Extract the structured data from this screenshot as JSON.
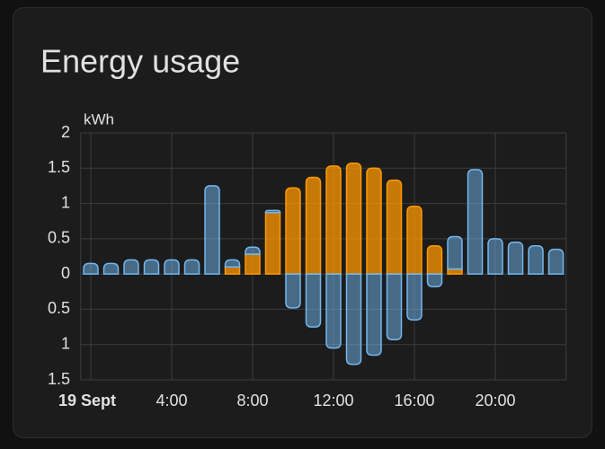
{
  "chart_data": {
    "type": "stacked_bar",
    "title": "Energy usage",
    "y_label": "kWh",
    "categories": [
      "19 Sept",
      null,
      null,
      null,
      "4:00",
      null,
      null,
      null,
      "8:00",
      null,
      null,
      null,
      "12:00",
      null,
      null,
      null,
      "16:00",
      null,
      null,
      null,
      "20:00",
      null,
      null,
      null
    ],
    "series": [
      {
        "color": "#ff9800",
        "values": [
          null,
          null,
          null,
          null,
          null,
          null,
          null,
          0.1,
          0.28,
          0.87,
          1.22,
          1.37,
          1.53,
          1.57,
          1.5,
          1.33,
          0.96,
          0.4,
          0.07,
          null,
          null,
          null,
          null,
          null
        ]
      },
      {
        "color": "#72b7f0",
        "values": [
          0.15,
          0.15,
          0.2,
          0.2,
          0.2,
          0.2,
          1.25,
          0.1,
          0.1,
          0.03,
          null,
          null,
          null,
          null,
          null,
          null,
          null,
          null,
          0.46,
          1.48,
          0.5,
          0.45,
          0.4,
          0.35
        ]
      },
      {
        "color": "#72b7f0",
        "values": [
          null,
          null,
          null,
          null,
          null,
          null,
          null,
          null,
          null,
          null,
          -0.48,
          -0.75,
          -1.05,
          -1.28,
          -1.15,
          -0.93,
          -0.65,
          -0.18,
          null,
          null,
          null,
          null,
          null,
          null
        ]
      }
    ],
    "ylim": [
      -1.5,
      2
    ],
    "yticks": [
      {
        "value": -1.5,
        "label": "1.5"
      },
      {
        "value": -1,
        "label": "1"
      },
      {
        "value": -0.5,
        "label": "0.5"
      },
      0,
      0.5,
      1,
      1.5,
      2
    ],
    "grid": true
  }
}
